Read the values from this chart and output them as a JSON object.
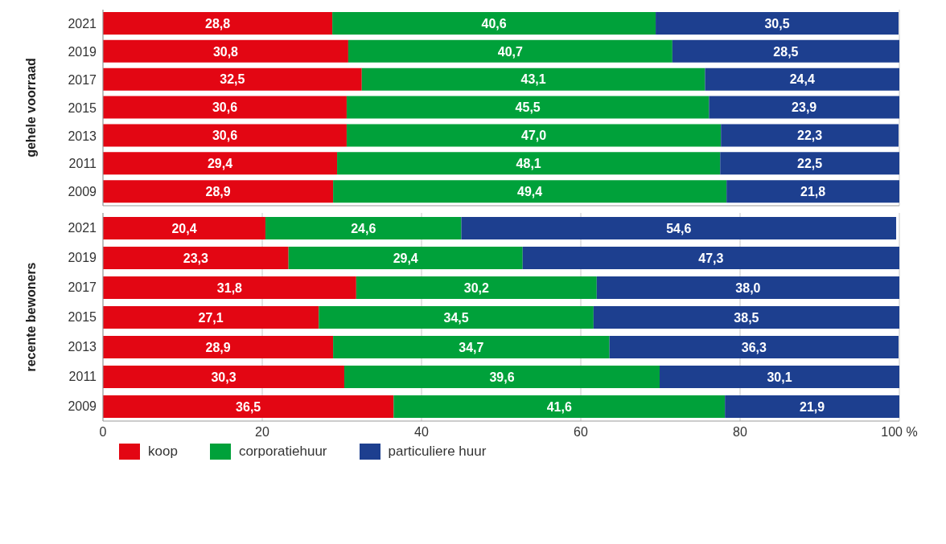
{
  "chart_data": [
    {
      "type": "bar",
      "orientation": "horizontal",
      "stacked": true,
      "ylabel": "gehele voorraad",
      "categories": [
        "2021",
        "2019",
        "2017",
        "2015",
        "2013",
        "2011",
        "2009"
      ],
      "series": [
        {
          "color": "#e30613",
          "values": [
            28.8,
            30.8,
            32.5,
            30.6,
            30.6,
            29.4,
            28.9
          ],
          "value_labels": [
            "28,8",
            "30,8",
            "32,5",
            "30,6",
            "30,6",
            "29,4",
            "28,9"
          ]
        },
        {
          "color": "#00a13a",
          "values": [
            40.6,
            40.7,
            43.1,
            45.5,
            47.0,
            48.1,
            49.4
          ],
          "value_labels": [
            "40,6",
            "40,7",
            "43,1",
            "45,5",
            "47,0",
            "48,1",
            "49,4"
          ]
        },
        {
          "color": "#1d3f8f",
          "values": [
            30.5,
            28.5,
            24.4,
            23.9,
            22.3,
            22.5,
            21.8
          ],
          "value_labels": [
            "30,5",
            "28,5",
            "24,4",
            "23,9",
            "22,3",
            "22,5",
            "21,8"
          ]
        }
      ],
      "xlim": [
        0,
        100
      ],
      "xticks": [
        0,
        20,
        40,
        60,
        80,
        100
      ],
      "grid": "x",
      "tick_labels": "y"
    },
    {
      "type": "bar",
      "orientation": "horizontal",
      "stacked": true,
      "ylabel": "recente bewoners",
      "categories": [
        "2021",
        "2019",
        "2017",
        "2015",
        "2013",
        "2011",
        "2009"
      ],
      "series": [
        {
          "name": "koop",
          "color": "#e30613",
          "values": [
            20.4,
            23.3,
            31.8,
            27.1,
            28.9,
            30.3,
            36.5
          ],
          "value_labels": [
            "20,4",
            "23,3",
            "31,8",
            "27,1",
            "28,9",
            "30,3",
            "36,5"
          ]
        },
        {
          "name": "corporatiehuur",
          "color": "#00a13a",
          "values": [
            24.6,
            29.4,
            30.2,
            34.5,
            34.7,
            39.6,
            41.6
          ],
          "value_labels": [
            "24,6",
            "29,4",
            "30,2",
            "34,5",
            "34,7",
            "39,6",
            "41,6"
          ]
        },
        {
          "name": "particuliere huur",
          "color": "#1d3f8f",
          "values": [
            54.6,
            47.3,
            38.0,
            38.5,
            36.3,
            30.1,
            21.9
          ],
          "value_labels": [
            "54,6",
            "47,3",
            "38,0",
            "38,5",
            "36,3",
            "30,1",
            "21,9"
          ]
        }
      ],
      "xlim": [
        0,
        100
      ],
      "xticks": [
        0,
        20,
        40,
        60,
        80,
        {
          "value": 100,
          "label": "100 %"
        }
      ],
      "grid": "x",
      "legend": "bottom left"
    }
  ]
}
